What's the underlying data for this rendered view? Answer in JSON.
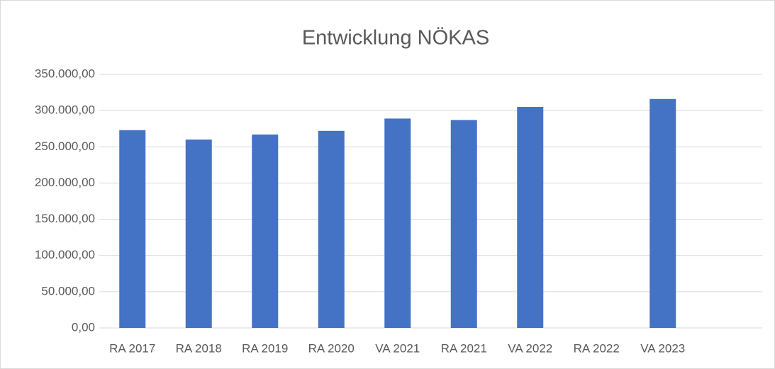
{
  "chart_data": {
    "type": "bar",
    "title": "Entwicklung NÖKAS",
    "categories": [
      "RA 2017",
      "RA 2018",
      "RA 2019",
      "RA 2020",
      "VA 2021",
      "RA 2021",
      "VA 2022",
      "RA 2022",
      "VA 2023",
      null
    ],
    "values": [
      273000,
      260000,
      267000,
      272000,
      289000,
      287000,
      305000,
      null,
      316000,
      null
    ],
    "color": "#4472c4",
    "ylim": [
      0,
      350000
    ],
    "yticks": [
      {
        "value": 0,
        "label": "0,00"
      },
      {
        "value": 50000,
        "label": "50.000,00"
      },
      {
        "value": 100000,
        "label": "100.000,00"
      },
      {
        "value": 150000,
        "label": "150.000,00"
      },
      {
        "value": 200000,
        "label": "200.000,00"
      },
      {
        "value": 250000,
        "label": "250.000,00"
      },
      {
        "value": 300000,
        "label": "300.000,00"
      },
      {
        "value": 350000,
        "label": "350.000,00"
      }
    ],
    "grid": true
  }
}
